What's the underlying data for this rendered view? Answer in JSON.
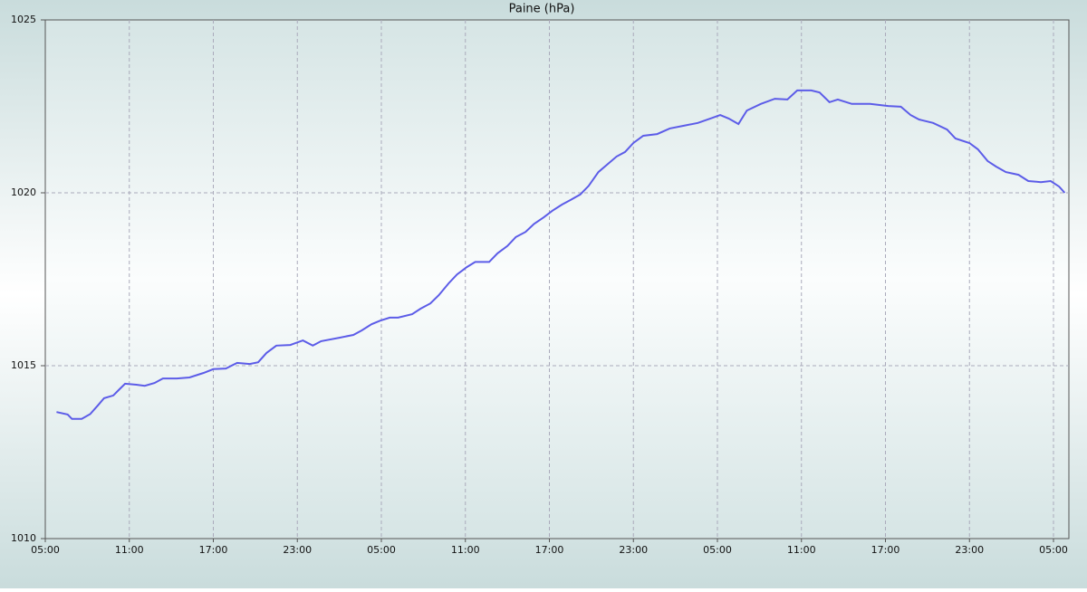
{
  "chart_data": {
    "type": "line",
    "title": "Paine (hPa)",
    "color": "#5c5ce8",
    "grid": true,
    "x": [
      0.8,
      1.6,
      1.9,
      2.6,
      3.2,
      3.75,
      4.2,
      4.85,
      5.3,
      5.7,
      6.5,
      7.1,
      7.8,
      8.4,
      9.4,
      10.3,
      11.3,
      12,
      12.9,
      13.7,
      14.6,
      15.2,
      15.8,
      16.5,
      17.5,
      18.4,
      19.1,
      19.7,
      21,
      22,
      22.6,
      23.3,
      23.9,
      24.6,
      25.2,
      26.2,
      26.8,
      27.5,
      28.1,
      28.8,
      29.4,
      30.1,
      30.7,
      31.7,
      32.3,
      33,
      33.6,
      34.3,
      34.9,
      35.6,
      36.2,
      36.9,
      37.5,
      38.2,
      38.8,
      39.5,
      40.1,
      40.8,
      41.4,
      42,
      42.7,
      43.7,
      44.6,
      45.6,
      46.6,
      47.5,
      48.2,
      48.8,
      49.5,
      50.1,
      51.1,
      52.1,
      53,
      53.7,
      54.7,
      55.3,
      56,
      56.6,
      57.6,
      58.9,
      60.2,
      61.1,
      61.8,
      62.4,
      63.4,
      64.4,
      65,
      66,
      66.6,
      67.3,
      67.9,
      68.6,
      69.5,
      70.2,
      71.1,
      71.8,
      72.4,
      72.8
    ],
    "values": [
      1013.66,
      1013.59,
      1013.46,
      1013.46,
      1013.6,
      1013.85,
      1014.06,
      1014.14,
      1014.32,
      1014.48,
      1014.45,
      1014.42,
      1014.5,
      1014.63,
      1014.63,
      1014.66,
      1014.79,
      1014.9,
      1014.92,
      1015.08,
      1015.05,
      1015.1,
      1015.37,
      1015.58,
      1015.6,
      1015.73,
      1015.58,
      1015.71,
      1015.81,
      1015.89,
      1016.02,
      1016.2,
      1016.3,
      1016.39,
      1016.39,
      1016.49,
      1016.65,
      1016.8,
      1017.04,
      1017.38,
      1017.64,
      1017.85,
      1018.0,
      1018.0,
      1018.25,
      1018.46,
      1018.72,
      1018.87,
      1019.1,
      1019.29,
      1019.48,
      1019.66,
      1019.79,
      1019.95,
      1020.2,
      1020.6,
      1020.81,
      1021.05,
      1021.18,
      1021.44,
      1021.65,
      1021.7,
      1021.86,
      1021.94,
      1022.02,
      1022.15,
      1022.25,
      1022.15,
      1021.99,
      1022.38,
      1022.57,
      1022.72,
      1022.7,
      1022.96,
      1022.96,
      1022.9,
      1022.62,
      1022.7,
      1022.57,
      1022.57,
      1022.51,
      1022.49,
      1022.25,
      1022.12,
      1022.02,
      1021.83,
      1021.57,
      1021.44,
      1021.26,
      1020.92,
      1020.76,
      1020.6,
      1020.52,
      1020.34,
      1020.31,
      1020.34,
      1020.18,
      1020.0
    ],
    "xlim": [
      0,
      73.1
    ],
    "xticks": [
      {
        "value": 0,
        "label": "05:00"
      },
      {
        "value": 6,
        "label": "11:00"
      },
      {
        "value": 12,
        "label": "17:00"
      },
      {
        "value": 18,
        "label": "23:00"
      },
      {
        "value": 24,
        "label": "05:00"
      },
      {
        "value": 30,
        "label": "11:00"
      },
      {
        "value": 36,
        "label": "17:00"
      },
      {
        "value": 42,
        "label": "23:00"
      },
      {
        "value": 48,
        "label": "05:00"
      },
      {
        "value": 54,
        "label": "11:00"
      },
      {
        "value": 60,
        "label": "17:00"
      },
      {
        "value": 66,
        "label": "23:00"
      },
      {
        "value": 72,
        "label": "05:00"
      }
    ],
    "ylim": [
      1010,
      1025
    ],
    "yticks": [
      1010,
      1015,
      1020,
      1025
    ]
  }
}
